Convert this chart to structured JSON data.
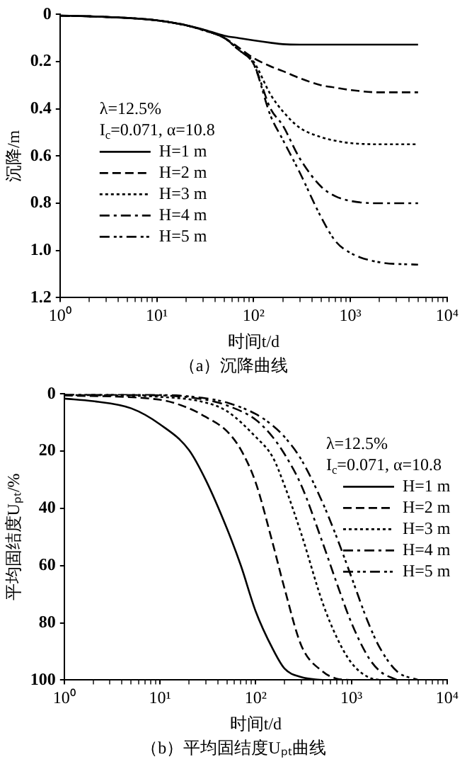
{
  "chart_data": [
    {
      "type": "line",
      "title": "（a）沉降曲线",
      "xlabel": "时间t/d",
      "ylabel": "沉降/m",
      "log": "x",
      "grid": false,
      "legend": "left",
      "marker": "none",
      "annotations": [
        "λ=12.5%",
        "I$_{c}$=0.071, α=10.8"
      ],
      "xlim": [
        1,
        10000
      ],
      "ylim": [
        1.2,
        0
      ],
      "xticks": [
        {
          "value": 1,
          "label": "10⁰"
        },
        {
          "value": 2,
          "label": null
        },
        {
          "value": 3,
          "label": null
        },
        {
          "value": 4,
          "label": null
        },
        {
          "value": 5,
          "label": null
        },
        {
          "value": 6,
          "label": null
        },
        {
          "value": 7,
          "label": null
        },
        {
          "value": 8,
          "label": null
        },
        {
          "value": 9,
          "label": null
        },
        {
          "value": 10,
          "label": "10¹"
        },
        {
          "value": 20,
          "label": null
        },
        {
          "value": 30,
          "label": null
        },
        {
          "value": 40,
          "label": null
        },
        {
          "value": 50,
          "label": null
        },
        {
          "value": 60,
          "label": null
        },
        {
          "value": 70,
          "label": null
        },
        {
          "value": 80,
          "label": null
        },
        {
          "value": 90,
          "label": null
        },
        {
          "value": 100,
          "label": "10²"
        },
        {
          "value": 200,
          "label": null
        },
        {
          "value": 300,
          "label": null
        },
        {
          "value": 400,
          "label": null
        },
        {
          "value": 500,
          "label": null
        },
        {
          "value": 600,
          "label": null
        },
        {
          "value": 700,
          "label": null
        },
        {
          "value": 800,
          "label": null
        },
        {
          "value": 900,
          "label": null
        },
        {
          "value": 1000,
          "label": "10³"
        },
        {
          "value": 2000,
          "label": null
        },
        {
          "value": 3000,
          "label": null
        },
        {
          "value": 4000,
          "label": null
        },
        {
          "value": 5000,
          "label": null
        },
        {
          "value": 6000,
          "label": null
        },
        {
          "value": 7000,
          "label": null
        },
        {
          "value": 8000,
          "label": null
        },
        {
          "value": 9000,
          "label": null
        },
        {
          "value": 10000,
          "label": "10⁴"
        }
      ],
      "yticks": [
        0,
        0.2,
        0.4,
        0.6,
        0.8,
        {
          "value": 1,
          "label": "1.0"
        },
        {
          "value": 1.2,
          "label": "1.2"
        }
      ],
      "x": [
        1,
        2,
        5,
        10,
        20,
        30,
        50,
        70,
        100,
        150,
        200,
        300,
        500,
        700,
        1000,
        2000,
        5000
      ],
      "series": [
        {
          "name": "H=1 m",
          "color": "#000000",
          "line_style": "solid",
          "values": [
            0.005,
            0.008,
            0.015,
            0.025,
            0.045,
            0.063,
            0.09,
            0.1,
            0.11,
            0.12,
            0.126,
            0.128,
            0.128,
            0.128,
            0.128,
            0.128,
            0.128
          ]
        },
        {
          "name": "H=2 m",
          "color": "#000000",
          "line_style": "dashed",
          "values": [
            0.005,
            0.008,
            0.015,
            0.025,
            0.046,
            0.065,
            0.1,
            0.14,
            0.185,
            0.22,
            0.24,
            0.27,
            0.3,
            0.31,
            0.32,
            0.33,
            0.33
          ]
        },
        {
          "name": "H=3 m",
          "color": "#000000",
          "line_style": "dotted",
          "values": [
            0.005,
            0.008,
            0.015,
            0.025,
            0.046,
            0.066,
            0.1,
            0.15,
            0.2,
            0.34,
            0.41,
            0.48,
            0.52,
            0.535,
            0.545,
            0.55,
            0.55
          ]
        },
        {
          "name": "H=4 m",
          "color": "#000000",
          "line_style": "dashdot",
          "values": [
            0.005,
            0.008,
            0.015,
            0.025,
            0.046,
            0.066,
            0.1,
            0.15,
            0.21,
            0.4,
            0.47,
            0.61,
            0.73,
            0.77,
            0.79,
            0.8,
            0.8
          ]
        },
        {
          "name": "H=5 m",
          "color": "#000000",
          "line_style": "dashdotdot",
          "values": [
            0.005,
            0.008,
            0.015,
            0.025,
            0.046,
            0.066,
            0.1,
            0.15,
            0.21,
            0.43,
            0.53,
            0.67,
            0.86,
            0.96,
            1.01,
            1.05,
            1.06
          ]
        }
      ]
    },
    {
      "type": "line",
      "title": "（b）平均固结度Uₚₜ曲线",
      "xlabel": "时间t/d",
      "ylabel": "平均固结度Uₚₜ/%",
      "log": "x",
      "grid": false,
      "legend": "top right",
      "marker": "none",
      "annotations": [
        "λ=12.5%",
        "I$_{c}$=0.071, α=10.8"
      ],
      "xlim": [
        1,
        10000
      ],
      "ylim": [
        100,
        0
      ],
      "xticks": [
        {
          "value": 1,
          "label": "10⁰"
        },
        {
          "value": 2,
          "label": null
        },
        {
          "value": 3,
          "label": null
        },
        {
          "value": 4,
          "label": null
        },
        {
          "value": 5,
          "label": null
        },
        {
          "value": 6,
          "label": null
        },
        {
          "value": 7,
          "label": null
        },
        {
          "value": 8,
          "label": null
        },
        {
          "value": 9,
          "label": null
        },
        {
          "value": 10,
          "label": "10¹"
        },
        {
          "value": 20,
          "label": null
        },
        {
          "value": 30,
          "label": null
        },
        {
          "value": 40,
          "label": null
        },
        {
          "value": 50,
          "label": null
        },
        {
          "value": 60,
          "label": null
        },
        {
          "value": 70,
          "label": null
        },
        {
          "value": 80,
          "label": null
        },
        {
          "value": 90,
          "label": null
        },
        {
          "value": 100,
          "label": "10²"
        },
        {
          "value": 200,
          "label": null
        },
        {
          "value": 300,
          "label": null
        },
        {
          "value": 400,
          "label": null
        },
        {
          "value": 500,
          "label": null
        },
        {
          "value": 600,
          "label": null
        },
        {
          "value": 700,
          "label": null
        },
        {
          "value": 800,
          "label": null
        },
        {
          "value": 900,
          "label": null
        },
        {
          "value": 1000,
          "label": "10³"
        },
        {
          "value": 2000,
          "label": null
        },
        {
          "value": 3000,
          "label": null
        },
        {
          "value": 4000,
          "label": null
        },
        {
          "value": 5000,
          "label": null
        },
        {
          "value": 6000,
          "label": null
        },
        {
          "value": 7000,
          "label": null
        },
        {
          "value": 8000,
          "label": null
        },
        {
          "value": 9000,
          "label": null
        },
        {
          "value": 10000,
          "label": "10⁴"
        }
      ],
      "yticks": [
        0,
        20,
        40,
        60,
        80,
        100
      ],
      "series": [
        {
          "name": "H=1 m",
          "color": "#000000",
          "line_style": "solid",
          "x": [
            1,
            2,
            5,
            10,
            20,
            30,
            50,
            70,
            100,
            150,
            200,
            300,
            500
          ],
          "values": [
            1.6,
            2.5,
            5,
            10.6,
            19.5,
            30,
            47,
            60,
            76,
            89,
            96,
            99,
            100
          ]
        },
        {
          "name": "H=2 m",
          "color": "#000000",
          "line_style": "dashed",
          "x": [
            1,
            10,
            20,
            30,
            50,
            70,
            100,
            150,
            200,
            300,
            500,
            700,
            1000
          ],
          "values": [
            0.5,
            2,
            5,
            8,
            13,
            19.5,
            31,
            52,
            68,
            88,
            97,
            99.5,
            100
          ]
        },
        {
          "name": "H=3 m",
          "color": "#000000",
          "line_style": "dotted",
          "x": [
            1,
            10,
            30,
            50,
            100,
            150,
            200,
            300,
            500,
            700,
            1000,
            1500,
            2000
          ],
          "values": [
            0.3,
            1,
            3,
            6,
            15,
            22,
            32,
            49,
            73,
            85,
            94,
            99,
            100
          ]
        },
        {
          "name": "H=4 m",
          "color": "#000000",
          "line_style": "dashdot",
          "x": [
            1,
            10,
            30,
            50,
            100,
            150,
            200,
            300,
            500,
            700,
            1000,
            1500,
            2000,
            3000
          ],
          "values": [
            0.2,
            0.5,
            2,
            4,
            9,
            15,
            21,
            32,
            52,
            66,
            80,
            92,
            97,
            100
          ]
        },
        {
          "name": "H=5 m",
          "color": "#000000",
          "line_style": "dashdotdot",
          "x": [
            1,
            10,
            30,
            50,
            100,
            150,
            200,
            300,
            500,
            700,
            1000,
            1500,
            2000,
            3000,
            5000
          ],
          "values": [
            0.1,
            0.3,
            1.5,
            3,
            7,
            11,
            15,
            23,
            38,
            50,
            64,
            80,
            89,
            97,
            100
          ]
        }
      ]
    }
  ]
}
